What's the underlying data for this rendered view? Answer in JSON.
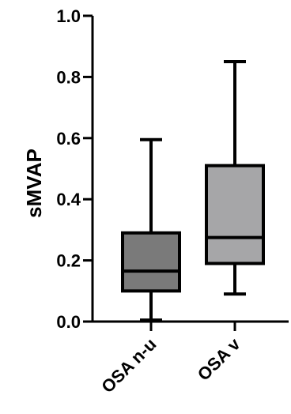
{
  "chart_data": {
    "type": "box",
    "ylabel": "sMVAP",
    "xlabel": "",
    "ylim": [
      0,
      1.0
    ],
    "yticks": [
      "0.0",
      "0.2",
      "0.4",
      "0.6",
      "0.8",
      "1.0"
    ],
    "categories": [
      "OSA n-u",
      "OSA v"
    ],
    "boxes": [
      {
        "category": "OSA n-u",
        "min": 0.005,
        "q1": 0.1,
        "median": 0.165,
        "q3": 0.29,
        "max": 0.595,
        "color": "#7a7a7a"
      },
      {
        "category": "OSA v",
        "min": 0.09,
        "q1": 0.19,
        "median": 0.275,
        "q3": 0.51,
        "max": 0.85,
        "color": "#a6a6a8"
      }
    ],
    "grid": false,
    "legend": "none"
  }
}
